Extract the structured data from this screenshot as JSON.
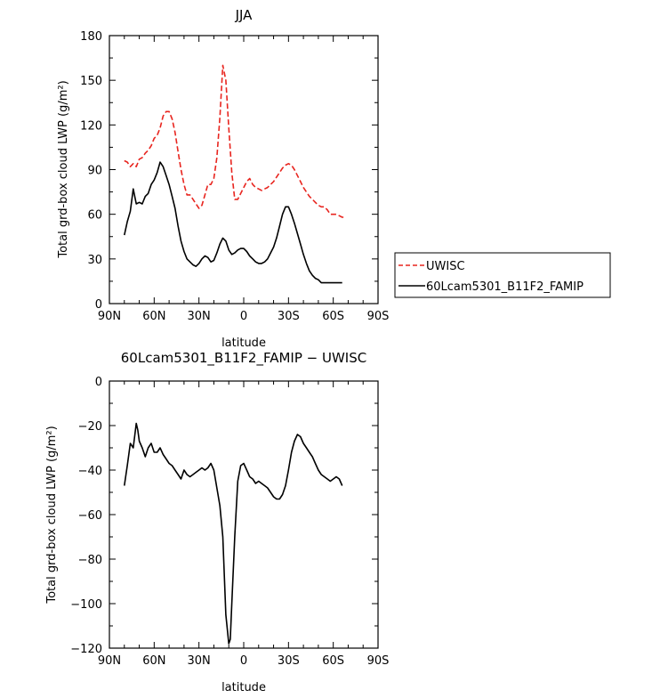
{
  "chart_data": [
    {
      "type": "line",
      "title": "JJA",
      "xlabel": "latitude",
      "ylabel": "Total grd-box cloud LWP (g/m²)",
      "xlim": [
        90,
        -90
      ],
      "ylim": [
        0,
        180
      ],
      "x_ticks": [
        90,
        60,
        30,
        0,
        -30,
        -60,
        -90
      ],
      "x_tick_labels": [
        "90N",
        "60N",
        "30N",
        "0",
        "30S",
        "60S",
        "90S"
      ],
      "y_ticks": [
        0,
        30,
        60,
        90,
        120,
        150,
        180
      ],
      "y_tick_labels": [
        "0",
        "30",
        "60",
        "90",
        "120",
        "150",
        "180"
      ],
      "grid": false,
      "legend_position": "right",
      "series": [
        {
          "name": "UWISC",
          "color": "#e8251f",
          "style": "dashed",
          "x": [
            80,
            78,
            76,
            74,
            72,
            70,
            68,
            66,
            64,
            62,
            60,
            58,
            56,
            54,
            52,
            50,
            48,
            46,
            44,
            42,
            40,
            38,
            36,
            34,
            32,
            30,
            28,
            26,
            24,
            22,
            20,
            18,
            16,
            14,
            12,
            10,
            8,
            6,
            4,
            2,
            0,
            -2,
            -4,
            -6,
            -8,
            -10,
            -12,
            -14,
            -16,
            -18,
            -20,
            -22,
            -24,
            -26,
            -28,
            -30,
            -32,
            -34,
            -36,
            -38,
            -40,
            -42,
            -44,
            -46,
            -48,
            -50,
            -52,
            -54,
            -56,
            -58,
            -60,
            -62,
            -64,
            -66,
            -68
          ],
          "y": [
            96,
            95,
            92,
            94,
            92,
            97,
            98,
            101,
            103,
            106,
            111,
            113,
            118,
            126,
            129,
            129,
            124,
            115,
            102,
            90,
            80,
            73,
            73,
            70,
            67,
            64,
            66,
            73,
            80,
            80,
            84,
            98,
            125,
            160,
            150,
            118,
            88,
            70,
            70,
            74,
            78,
            82,
            84,
            80,
            78,
            77,
            76,
            77,
            78,
            80,
            82,
            85,
            88,
            91,
            93,
            94,
            93,
            90,
            86,
            82,
            78,
            75,
            72,
            70,
            68,
            66,
            65,
            65,
            63,
            60,
            60,
            60,
            59,
            58,
            58
          ]
        },
        {
          "name": "60Lcam5301_B11F2_FAMIP",
          "color": "#000000",
          "style": "solid",
          "x": [
            80,
            78,
            76,
            74,
            72,
            70,
            68,
            66,
            64,
            62,
            60,
            58,
            56,
            54,
            52,
            50,
            48,
            46,
            44,
            42,
            40,
            38,
            36,
            34,
            32,
            30,
            28,
            26,
            24,
            22,
            20,
            18,
            16,
            14,
            12,
            10,
            8,
            6,
            4,
            2,
            0,
            -2,
            -4,
            -6,
            -8,
            -10,
            -12,
            -14,
            -16,
            -18,
            -20,
            -22,
            -24,
            -26,
            -28,
            -30,
            -32,
            -34,
            -36,
            -38,
            -40,
            -42,
            -44,
            -46,
            -48,
            -50,
            -52,
            -54,
            -56,
            -58,
            -60,
            -62,
            -64,
            -66
          ],
          "y": [
            46,
            55,
            62,
            77,
            67,
            68,
            67,
            72,
            74,
            80,
            83,
            88,
            95,
            92,
            86,
            80,
            72,
            64,
            52,
            42,
            35,
            30,
            28,
            26,
            25,
            27,
            30,
            32,
            31,
            28,
            29,
            34,
            40,
            44,
            42,
            36,
            33,
            34,
            36,
            37,
            37,
            35,
            32,
            30,
            28,
            27,
            27,
            28,
            30,
            34,
            38,
            44,
            52,
            60,
            65,
            65,
            60,
            54,
            47,
            40,
            33,
            27,
            22,
            19,
            17,
            16,
            14,
            14,
            14,
            14,
            14,
            14,
            14,
            14
          ]
        }
      ]
    },
    {
      "type": "line",
      "title": "60Lcam5301_B11F2_FAMIP − UWISC",
      "xlabel": "latitude",
      "ylabel": "Total grd-box cloud LWP (g/m²)",
      "xlim": [
        90,
        -90
      ],
      "ylim": [
        -120,
        0
      ],
      "x_ticks": [
        90,
        60,
        30,
        0,
        -30,
        -60,
        -90
      ],
      "x_tick_labels": [
        "90N",
        "60N",
        "30N",
        "0",
        "30S",
        "60S",
        "90S"
      ],
      "y_ticks": [
        0,
        -20,
        -40,
        -60,
        -80,
        -100,
        -120
      ],
      "y_tick_labels": [
        "0",
        "−20",
        "−40",
        "−60",
        "−80",
        "−100",
        "−120"
      ],
      "grid": false,
      "series": [
        {
          "color": "#000000",
          "style": "solid",
          "x": [
            80,
            78,
            76,
            74,
            72,
            71,
            70,
            68,
            66,
            64,
            62,
            60,
            58,
            56,
            54,
            52,
            50,
            48,
            46,
            44,
            42,
            40,
            38,
            36,
            34,
            32,
            30,
            28,
            26,
            24,
            22,
            20,
            18,
            16,
            14,
            12,
            10,
            9,
            8,
            6,
            4,
            2,
            0,
            -2,
            -4,
            -6,
            -8,
            -10,
            -12,
            -14,
            -16,
            -18,
            -20,
            -22,
            -24,
            -26,
            -28,
            -30,
            -32,
            -34,
            -36,
            -38,
            -40,
            -42,
            -44,
            -46,
            -48,
            -50,
            -52,
            -54,
            -56,
            -58,
            -60,
            -62,
            -64,
            -66
          ],
          "y": [
            -47,
            -38,
            -28,
            -30,
            -19,
            -22,
            -27,
            -30,
            -34,
            -30,
            -28,
            -32,
            -32,
            -30,
            -33,
            -35,
            -37,
            -38,
            -40,
            -42,
            -44,
            -40,
            -42,
            -43,
            -42,
            -41,
            -40,
            -39,
            -40,
            -39,
            -37,
            -40,
            -48,
            -56,
            -70,
            -105,
            -118,
            -116,
            -100,
            -70,
            -45,
            -38,
            -37,
            -40,
            -43,
            -44,
            -46,
            -45,
            -46,
            -47,
            -48,
            -50,
            -52,
            -53,
            -53,
            -51,
            -47,
            -40,
            -32,
            -27,
            -24,
            -25,
            -28,
            -30,
            -32,
            -34,
            -37,
            -40,
            -42,
            -43,
            -44,
            -45,
            -44,
            -43,
            -44,
            -47
          ]
        }
      ]
    }
  ]
}
